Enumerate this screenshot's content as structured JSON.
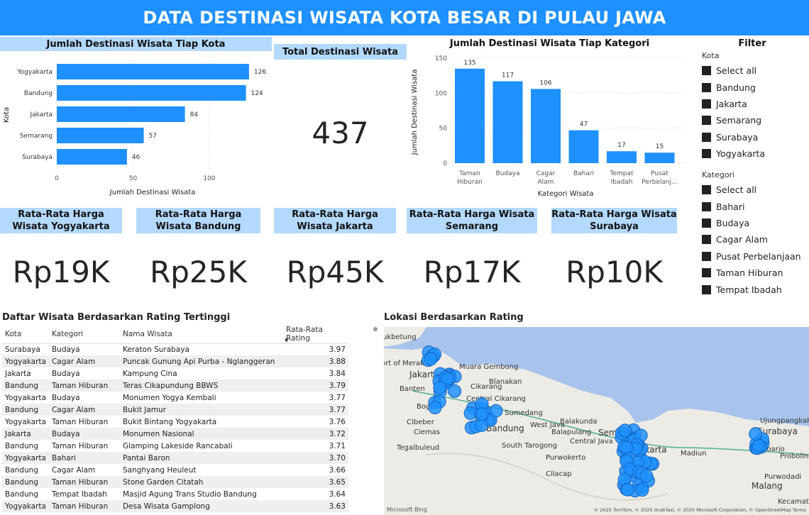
{
  "title": "DATA DESTINASI WISATA KOTA BESAR DI PULAU JAWA",
  "city_chart": {
    "header": "Jumlah Destinasi Wisata Tiap Kota",
    "chart_data": {
      "type": "bar",
      "orientation": "horizontal",
      "categories": [
        "Yogyakarta",
        "Bandung",
        "Jakarta",
        "Semarang",
        "Surabaya"
      ],
      "values": [
        126,
        124,
        84,
        57,
        46
      ],
      "xlabel": "Jumlah Destinasi Wisata",
      "ylabel": "Kota",
      "xticks": [
        0,
        50,
        100
      ],
      "xlim": [
        0,
        130
      ],
      "color": "#1e90ff"
    }
  },
  "total": {
    "header": "Total Destinasi Wisata",
    "value": "437"
  },
  "category_chart": {
    "header": "Jumlah Destinasi Wisata Tiap Kategori",
    "chart_data": {
      "type": "bar",
      "orientation": "vertical",
      "categories": [
        "Taman Hiburan",
        "Budaya",
        "Cagar Alam",
        "Bahari",
        "Tempat Ibadah",
        "Pusat Perbelanj..."
      ],
      "values": [
        135,
        117,
        106,
        47,
        17,
        15
      ],
      "xlabel": "Kategori Wisata",
      "ylabel": "Jumlah Destinasi Wisata",
      "yticks": [
        0,
        50,
        100,
        150
      ],
      "ylim": [
        0,
        150
      ],
      "color": "#1e90ff"
    }
  },
  "kpis": [
    {
      "header": "Rata-Rata Harga Wisata Yogyakarta",
      "value": "Rp19K"
    },
    {
      "header": "Rata-Rata Harga Wisata Bandung",
      "value": "Rp25K"
    },
    {
      "header": "Rata-Rata Harga Wisata Jakarta",
      "value": "Rp45K"
    },
    {
      "header": "Rata-Rata Harga Wisata Semarang",
      "value": "Rp17K"
    },
    {
      "header": "Rata-Rata Harga Wisata Surabaya",
      "value": "Rp10K"
    }
  ],
  "filter": {
    "title": "Filter",
    "kota_label": "Kota",
    "kota_items": [
      "Select all",
      "Bandung",
      "Jakarta",
      "Semarang",
      "Surabaya",
      "Yogyakarta"
    ],
    "kategori_label": "Kategori",
    "kategori_items": [
      "Select all",
      "Bahari",
      "Budaya",
      "Cagar Alam",
      "Pusat Perbelanjaan",
      "Taman Hiburan",
      "Tempat Ibadah"
    ]
  },
  "rating_table": {
    "title": "Daftar Wisata Berdasarkan Rating Tertinggi",
    "columns": [
      "Kota",
      "Kategori",
      "Nama Wisata",
      "Rata-Rata Rating"
    ],
    "rows": [
      [
        "Surabaya",
        "Budaya",
        "Keraton Surabaya",
        "3.97"
      ],
      [
        "Yogyakarta",
        "Cagar Alam",
        "Puncak Gunung Api Purba - Nglanggeran",
        "3.88"
      ],
      [
        "Jakarta",
        "Budaya",
        "Kampung Cina",
        "3.84"
      ],
      [
        "Bandung",
        "Taman Hiburan",
        "Teras Cikapundung BBWS",
        "3.79"
      ],
      [
        "Yogyakarta",
        "Budaya",
        "Monumen Yogya Kembali",
        "3.77"
      ],
      [
        "Bandung",
        "Cagar Alam",
        "Bukit Jamur",
        "3.77"
      ],
      [
        "Yogyakarta",
        "Taman Hiburan",
        "Bukit Bintang Yogyakarta",
        "3.76"
      ],
      [
        "Jakarta",
        "Budaya",
        "Monumen Nasional",
        "3.72"
      ],
      [
        "Bandung",
        "Taman Hiburan",
        "Glamping Lakeside Rancabali",
        "3.71"
      ],
      [
        "Yogyakarta",
        "Bahari",
        "Pantai Baron",
        "3.70"
      ],
      [
        "Bandung",
        "Cagar Alam",
        "Sanghyang Heuleut",
        "3.66"
      ],
      [
        "Bandung",
        "Taman Hiburan",
        "Stone Garden Citatah",
        "3.65"
      ],
      [
        "Bandung",
        "Tempat Ibadah",
        "Masjid Agung Trans Studio Bandung",
        "3.64"
      ],
      [
        "Yogyakarta",
        "Taman Hiburan",
        "Desa Wisata Gamplong",
        "3.63"
      ]
    ]
  },
  "map": {
    "title": "Lokasi Berdasarkan Rating",
    "place_labels": [
      "ukbetung",
      "ort of Merak",
      "Jakarta",
      "Muara Gembong",
      "Blanakan",
      "Banten",
      "Cikarang",
      "Central Cikarang",
      "Bogor",
      "Sumedang",
      "Cibeber",
      "Bandung",
      "West Java",
      "Balakunda",
      "Balapulang",
      "Central Java",
      "Semarang",
      "Ciemas",
      "Tegalbuleud",
      "South Tarogong",
      "Purwokerto",
      "Surakarta",
      "Madiun",
      "Cilacap",
      "Ujungpangkah",
      "Surabaya",
      "Sidoarjo",
      "Probolinggo",
      "Purwodadi",
      "Malang",
      "Kecamatan"
    ],
    "logo": "Microsoft Bing",
    "attribution": "© 2025 TomTom, © 2025 GrabTaxi, © 2025 Microsoft Corporation, © OpenStreetMap Terms"
  }
}
